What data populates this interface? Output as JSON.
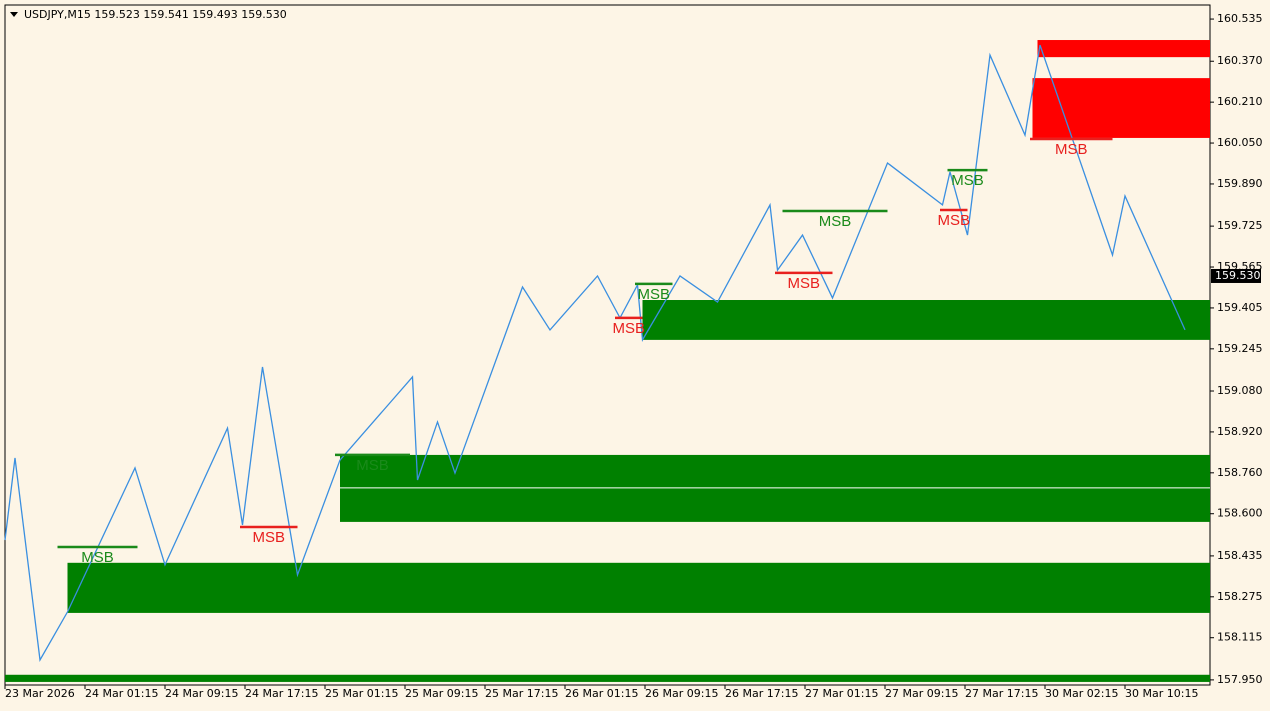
{
  "chart_data": {
    "type": "zigzag",
    "title": "USDJPY,M15  159.523 159.541 159.493 159.530",
    "xlim": [
      0,
      482
    ],
    "ylim": [
      157.93,
      160.59
    ],
    "xticks": [
      {
        "value": 0,
        "label": "23 Mar 2026"
      },
      {
        "value": 32,
        "label": "24 Mar 01:15"
      },
      {
        "value": 64,
        "label": "24 Mar 09:15"
      },
      {
        "value": 96,
        "label": "24 Mar 17:15"
      },
      {
        "value": 128,
        "label": "25 Mar 01:15"
      },
      {
        "value": 160,
        "label": "25 Mar 09:15"
      },
      {
        "value": 192,
        "label": "25 Mar 17:15"
      },
      {
        "value": 224,
        "label": "26 Mar 01:15"
      },
      {
        "value": 256,
        "label": "26 Mar 09:15"
      },
      {
        "value": 288,
        "label": "26 Mar 17:15"
      },
      {
        "value": 320,
        "label": "27 Mar 01:15"
      },
      {
        "value": 352,
        "label": "27 Mar 09:15"
      },
      {
        "value": 384,
        "label": "27 Mar 17:15"
      },
      {
        "value": 416,
        "label": "30 Mar 02:15"
      },
      {
        "value": 448,
        "label": "30 Mar 10:15"
      }
    ],
    "yticks": [
      160.535,
      {
        "value": 160.37,
        "label": "160.370"
      },
      {
        "value": 160.21,
        "label": "160.210"
      },
      {
        "value": 160.05,
        "label": "160.050"
      },
      {
        "value": 159.89,
        "label": "159.890"
      },
      159.725,
      159.565,
      159.405,
      159.245,
      {
        "value": 159.08,
        "label": "159.080"
      },
      {
        "value": 158.92,
        "label": "158.920"
      },
      {
        "value": 158.76,
        "label": "158.760"
      },
      {
        "value": 158.6,
        "label": "158.600"
      },
      158.435,
      158.275,
      158.115,
      {
        "value": 157.95,
        "label": "157.950"
      }
    ],
    "current_price": {
      "value": 159.53,
      "label": "159.530"
    },
    "series": [
      {
        "name": "ZigZag",
        "color": "#3a8fe0",
        "x": [
          0,
          4,
          14,
          25,
          52,
          64,
          89,
          95,
          103,
          117,
          134,
          163,
          165,
          173,
          180,
          207,
          218,
          237,
          246,
          253,
          255,
          270,
          285,
          306,
          309,
          319,
          331,
          353,
          375,
          378,
          385,
          394,
          408,
          414,
          443,
          448,
          472
        ],
        "values": [
          158.497,
          158.818,
          158.028,
          158.216,
          158.779,
          158.4,
          158.935,
          158.556,
          159.174,
          158.361,
          158.81,
          159.135,
          158.732,
          158.959,
          158.759,
          159.487,
          159.319,
          159.53,
          159.366,
          159.495,
          159.28,
          159.53,
          159.428,
          159.808,
          159.553,
          159.69,
          159.444,
          159.972,
          159.808,
          159.937,
          159.69,
          160.394,
          160.081,
          160.433,
          159.612,
          159.843,
          159.319
        ]
      }
    ],
    "zones": [
      {
        "x": 0,
        "top": 157.97,
        "bottom": 157.942,
        "color": "#008000"
      },
      {
        "x": 25,
        "top": 158.408,
        "bottom": 158.212,
        "color": "#008000"
      },
      {
        "x": 134,
        "top": 158.83,
        "bottom": 158.568,
        "color": "#008000"
      },
      {
        "x": 255,
        "top": 159.436,
        "bottom": 159.28,
        "color": "#008000"
      },
      {
        "x": 413,
        "top": 160.453,
        "bottom": 160.386,
        "color": "#ff0000"
      },
      {
        "x": 411,
        "top": 160.304,
        "bottom": 160.07,
        "color": "#ff0000"
      }
    ],
    "levels": [
      {
        "x": 134,
        "price": 158.701,
        "color": "#ffffff"
      }
    ],
    "msb": [
      {
        "x": [
          21,
          53
        ],
        "price": 158.47,
        "label": "MSB",
        "color": "#1a8a1a"
      },
      {
        "x": [
          94,
          117
        ],
        "price": 158.548,
        "label": "MSB",
        "color": "#e8201e"
      },
      {
        "x": [
          132,
          162
        ],
        "price": 158.83,
        "label": "MSB",
        "color": "#1a8a1a"
      },
      {
        "x": [
          244,
          255
        ],
        "price": 159.366,
        "label": "MSB",
        "color": "#e8201e"
      },
      {
        "x": [
          252,
          267
        ],
        "price": 159.499,
        "label": "MSB",
        "color": "#1a8a1a"
      },
      {
        "x": [
          308,
          331
        ],
        "price": 159.542,
        "label": "MSB",
        "color": "#e8201e"
      },
      {
        "x": [
          311,
          353
        ],
        "price": 159.784,
        "label": "MSB",
        "color": "#1a8a1a"
      },
      {
        "x": [
          374,
          385
        ],
        "price": 159.788,
        "label": "MSB",
        "color": "#e8201e"
      },
      {
        "x": [
          377,
          393
        ],
        "price": 159.944,
        "label": "MSB",
        "color": "#1a8a1a"
      },
      {
        "x": [
          410,
          443
        ],
        "price": 160.066,
        "label": "MSB",
        "color": "#e8201e"
      }
    ]
  }
}
